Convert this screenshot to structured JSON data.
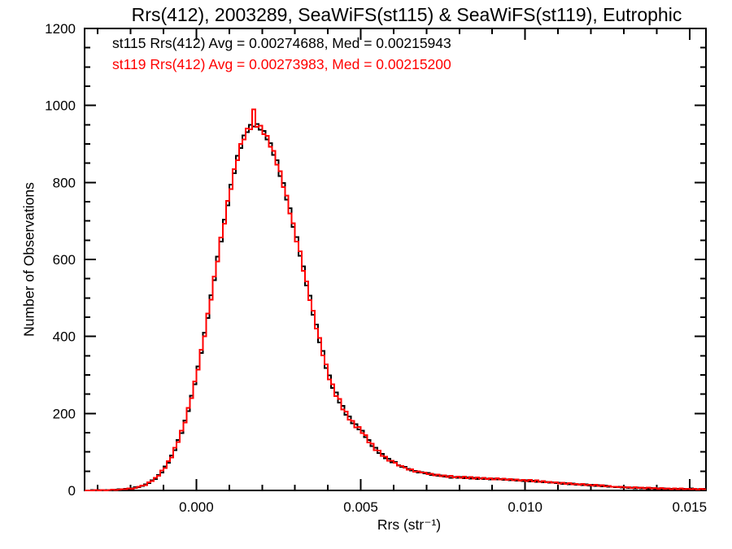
{
  "chart_data": {
    "type": "line",
    "subtype": "step-histogram-outline",
    "title": "Rrs(412), 2003289, SeaWiFS(st115) & SeaWiFS(st119), Eutrophic",
    "xlabel": "Rrs (str⁻¹)",
    "ylabel": "Number of Observations",
    "xlim": [
      -0.0034,
      0.0155
    ],
    "ylim": [
      0,
      1200
    ],
    "grid": false,
    "legend_position": "top-left-inside",
    "x_ticks": {
      "major": [
        0,
        0.005,
        0.01,
        0.015
      ],
      "labels": [
        "0.000",
        "0.005",
        "0.010",
        "0.015"
      ],
      "minor_step": 0.001
    },
    "y_ticks": {
      "major": [
        0,
        200,
        400,
        600,
        800,
        1000,
        1200
      ],
      "labels": [
        "0",
        "200",
        "400",
        "600",
        "800",
        "1000",
        "1200"
      ],
      "minor_step": 50
    },
    "bin_start": -0.0034,
    "bin_width": 0.0001,
    "legend": {
      "entries": [
        {
          "label": "st115 Rrs(412) Avg = 0.00274688, Med = 0.00215943",
          "color": "#000000"
        },
        {
          "label": "st119 Rrs(412) Avg = 0.00273983, Med = 0.00215200",
          "color": "#ff0000"
        }
      ]
    },
    "series": [
      {
        "name": "st115",
        "color": "#000000",
        "values": [
          0,
          0,
          1,
          0,
          1,
          0,
          1,
          1,
          1,
          2,
          3,
          2,
          4,
          4,
          5,
          8,
          8,
          12,
          16,
          19,
          26,
          30,
          40,
          47,
          62,
          72,
          91,
          105,
          131,
          149,
          182,
          206,
          246,
          276,
          322,
          357,
          410,
          448,
          507,
          546,
          607,
          646,
          704,
          741,
          794,
          824,
          869,
          889,
          922,
          931,
          950,
          945,
          952,
          937,
          934,
          912,
          902,
          871,
          858,
          817,
          799,
          755,
          733,
          685,
          658,
          610,
          582,
          532,
          506,
          456,
          431,
          385,
          362,
          318,
          299,
          266,
          255,
          228,
          220,
          196,
          192,
          174,
          172,
          158,
          155,
          138,
          131,
          115,
          111,
          97,
          95,
          83,
          82,
          73,
          74,
          66,
          61,
          61,
          56,
          52,
          51,
          47,
          48,
          44,
          45,
          40,
          41,
          38,
          39,
          36,
          37,
          33,
          35,
          33,
          35,
          32,
          34,
          31,
          33,
          30,
          32,
          30,
          31,
          29,
          31,
          28,
          30,
          27,
          29,
          26,
          28,
          25,
          26,
          24,
          26,
          23,
          25,
          22,
          23,
          21,
          22,
          20,
          21,
          19,
          20,
          17,
          19,
          16,
          18,
          15,
          16,
          14,
          16,
          13,
          15,
          12,
          14,
          11,
          13,
          10,
          10,
          8,
          9,
          7,
          8,
          6,
          7,
          5,
          7,
          5,
          6,
          4,
          6,
          4,
          5,
          3,
          5,
          3,
          4,
          4,
          4,
          2,
          4,
          3,
          5,
          2,
          3,
          3,
          4
        ]
      },
      {
        "name": "st119",
        "color": "#ff0000",
        "values": [
          0,
          0,
          0,
          1,
          0,
          1,
          0,
          1,
          2,
          1,
          2,
          3,
          3,
          5,
          4,
          6,
          10,
          13,
          14,
          21,
          24,
          33,
          38,
          52,
          58,
          76,
          86,
          111,
          126,
          155,
          176,
          214,
          240,
          283,
          314,
          365,
          400,
          459,
          495,
          556,
          595,
          657,
          693,
          752,
          783,
          835,
          858,
          900,
          912,
          940,
          938,
          990,
          944,
          948,
          925,
          921,
          893,
          882,
          846,
          829,
          788,
          766,
          719,
          694,
          647,
          621,
          570,
          543,
          494,
          467,
          420,
          396,
          351,
          327,
          288,
          276,
          245,
          238,
          210,
          205,
          184,
          181,
          164,
          165,
          149,
          144,
          125,
          121,
          105,
          103,
          90,
          88,
          77,
          77,
          72,
          64,
          63,
          59,
          54,
          55,
          49,
          50,
          46,
          47,
          42,
          43,
          39,
          41,
          37,
          39,
          35,
          38,
          34,
          36,
          33,
          36,
          32,
          35,
          31,
          34,
          31,
          33,
          30,
          32,
          29,
          32,
          28,
          31,
          27,
          30,
          26,
          29,
          25,
          27,
          24,
          27,
          23,
          26,
          22,
          24,
          21,
          22,
          20,
          21,
          18,
          20,
          17,
          19,
          16,
          17,
          15,
          17,
          14,
          15,
          13,
          15,
          12,
          14,
          11,
          12,
          9,
          10,
          8,
          9,
          7,
          8,
          6,
          8,
          6,
          7,
          5,
          7,
          5,
          6,
          4,
          6,
          4,
          5,
          3,
          5,
          3,
          5,
          3,
          4,
          3,
          4,
          2,
          4,
          3
        ]
      }
    ]
  }
}
